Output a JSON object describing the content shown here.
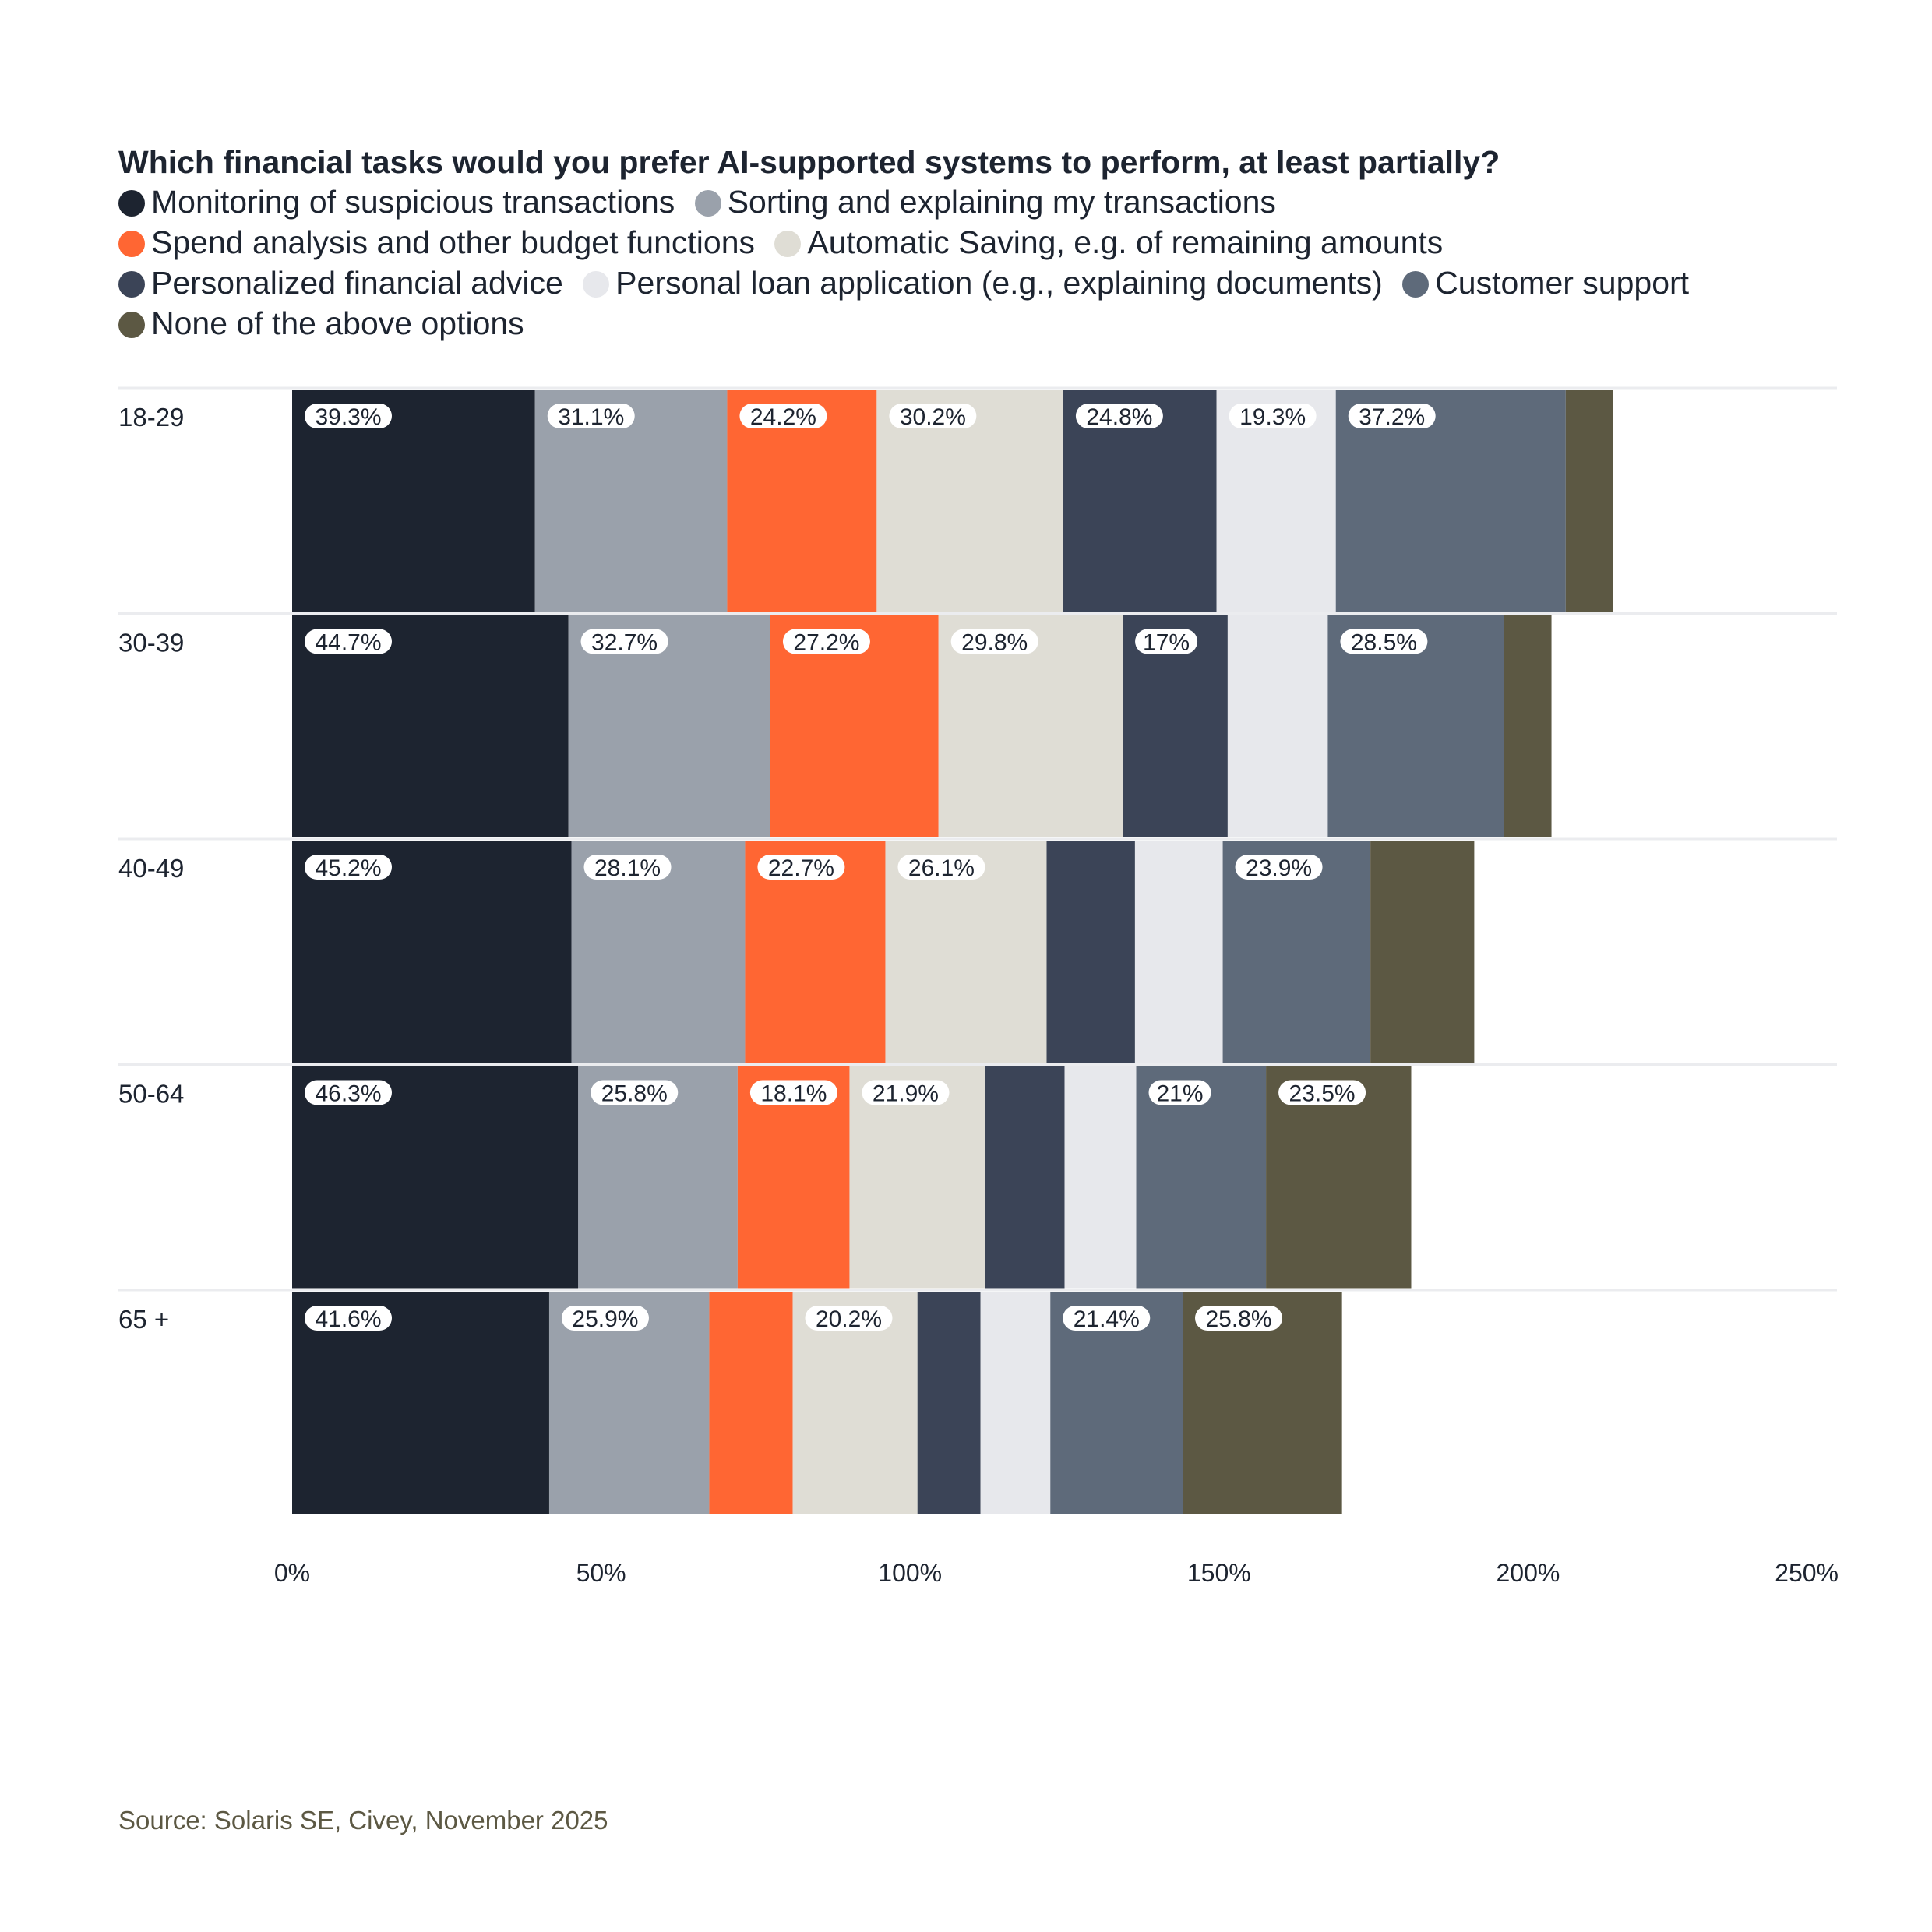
{
  "chart_data": {
    "type": "bar",
    "stacked": true,
    "orientation": "horizontal",
    "title": "Which financial tasks would you prefer AI-supported systems to perform, at least partially?",
    "categories": [
      "18-29",
      "30-39",
      "40-49",
      "50-64",
      "65 +"
    ],
    "series": [
      {
        "name": "Monitoring of suspicious transactions",
        "color": "#1d2430",
        "values": [
          39.3,
          44.7,
          45.2,
          46.3,
          41.6
        ],
        "labels": [
          "39.3%",
          "44.7%",
          "45.2%",
          "46.3%",
          "41.6%"
        ]
      },
      {
        "name": "Sorting and explaining my transactions",
        "color": "#9aa1ab",
        "values": [
          31.1,
          32.7,
          28.1,
          25.8,
          25.9
        ],
        "labels": [
          "31.1%",
          "32.7%",
          "28.1%",
          "25.8%",
          "25.9%"
        ]
      },
      {
        "name": "Spend analysis and other budget functions",
        "color": "#ff6633",
        "values": [
          24.2,
          27.2,
          22.7,
          18.1,
          13.5
        ],
        "labels": [
          "24.2%",
          "27.2%",
          "22.7%",
          "18.1%",
          ""
        ]
      },
      {
        "name": "Automatic Saving, e.g. of remaining amounts",
        "color": "#dfddd5",
        "values": [
          30.2,
          29.8,
          26.1,
          21.9,
          20.2
        ],
        "labels": [
          "30.2%",
          "29.8%",
          "26.1%",
          "21.9%",
          "20.2%"
        ]
      },
      {
        "name": "Personalized financial advice",
        "color": "#3b4457",
        "values": [
          24.8,
          17,
          14.3,
          12.9,
          10.2
        ],
        "labels": [
          "24.8%",
          "17%",
          "",
          "",
          ""
        ]
      },
      {
        "name": "Personal loan application (e.g., explaining documents)",
        "color": "#e7e8ec",
        "values": [
          19.3,
          16.2,
          14.2,
          11.6,
          11.3
        ],
        "labels": [
          "19.3%",
          "",
          "",
          "",
          ""
        ]
      },
      {
        "name": "Customer support",
        "color": "#5e6a7a",
        "values": [
          37.2,
          28.5,
          23.9,
          21,
          21.4
        ],
        "labels": [
          "37.2%",
          "28.5%",
          "23.9%",
          "21%",
          "21.4%"
        ]
      },
      {
        "name": "None of the above options",
        "color": "#5c5843",
        "values": [
          7.6,
          7.7,
          16.8,
          23.5,
          25.8
        ],
        "labels": [
          "",
          "",
          "",
          "23.5%",
          "25.8%"
        ]
      }
    ],
    "xlim": [
      0,
      250
    ],
    "xticks": [
      "0%",
      "50%",
      "100%",
      "150%",
      "200%",
      "250%"
    ],
    "xlabel": "",
    "ylabel": "",
    "grid": false,
    "legend_position": "top"
  },
  "source": "Source: Solaris SE, Civey, November 2025"
}
